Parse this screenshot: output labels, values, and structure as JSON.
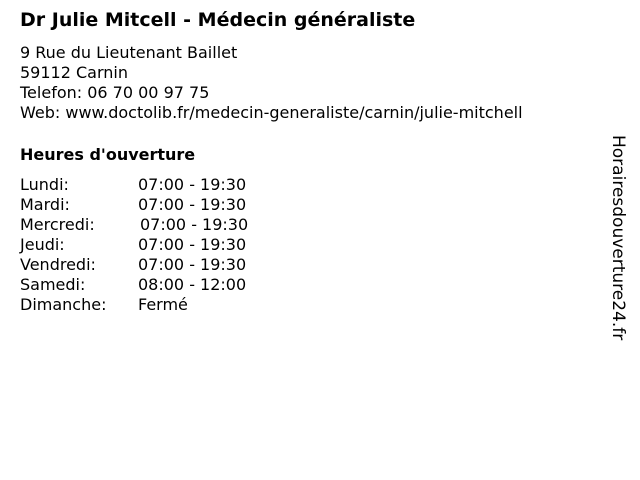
{
  "title": "Dr Julie Mitcell - Médecin généraliste",
  "address": {
    "street": "9 Rue du Lieutenant Baillet",
    "city": "59112 Carnin",
    "phone": "Telefon: 06 70 00 97 75",
    "web": "Web: www.doctolib.fr/medecin-generaliste/carnin/julie-mitchell"
  },
  "hours_heading": "Heures d'ouverture",
  "hours": [
    {
      "day": "Lundi:",
      "time": "07:00 - 19:30"
    },
    {
      "day": "Mardi:",
      "time": "07:00 - 19:30"
    },
    {
      "day": "Mercredi:",
      "time": "07:00 - 19:30"
    },
    {
      "day": "Jeudi:",
      "time": "07:00 - 19:30"
    },
    {
      "day": "Vendredi:",
      "time": "07:00 - 19:30"
    },
    {
      "day": "Samedi:",
      "time": "08:00 - 12:00"
    },
    {
      "day": "Dimanche:",
      "time": "Fermé"
    }
  ],
  "side_label": "Horairesdouverture24.fr"
}
